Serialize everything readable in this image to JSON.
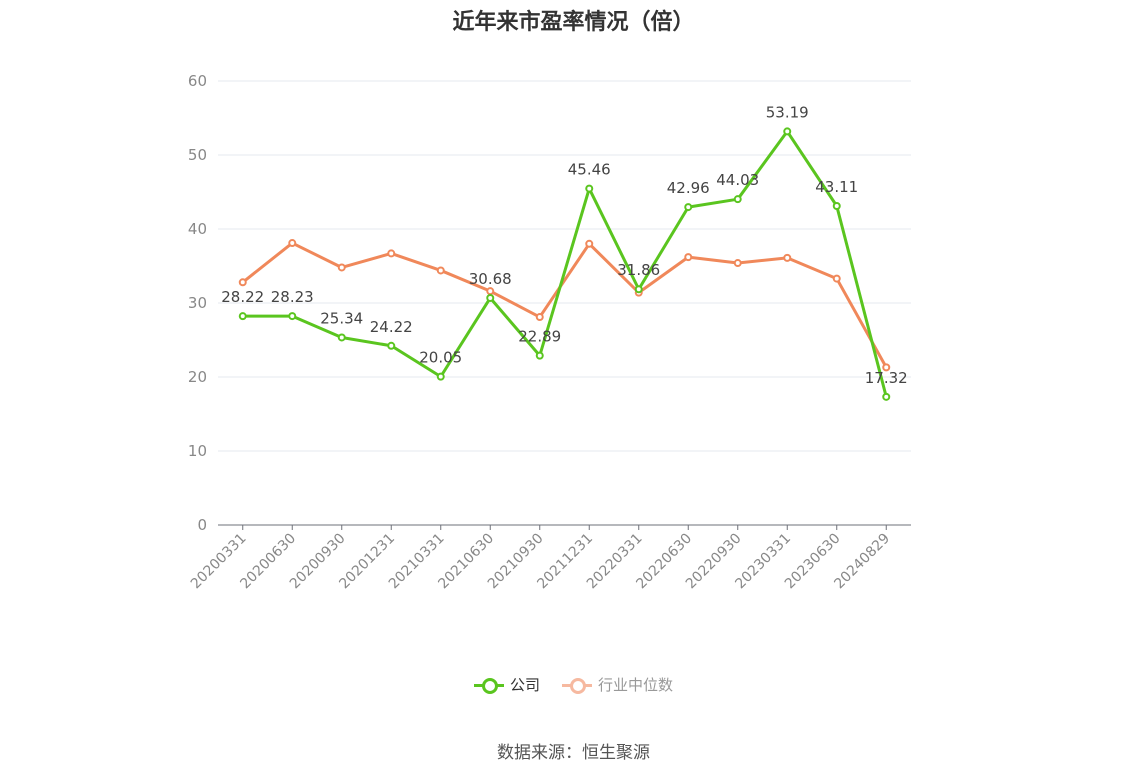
{
  "chart_data": {
    "type": "line",
    "title": "近年来市盈率情况（倍）",
    "xlabel": "",
    "ylabel": "",
    "ylim": [
      0,
      60
    ],
    "yticks": [
      0,
      10,
      20,
      30,
      40,
      50,
      60
    ],
    "grid": true,
    "legend_position": "bottom",
    "categories": [
      "20200331",
      "20200630",
      "20200930",
      "20201231",
      "20210331",
      "20210630",
      "20210930",
      "20211231",
      "20220331",
      "20220630",
      "20220930",
      "20230331",
      "20230630",
      "20240829"
    ],
    "series": [
      {
        "name": "公司",
        "color": "#5ac51f",
        "values": [
          28.22,
          28.23,
          25.34,
          24.22,
          20.05,
          30.68,
          22.89,
          45.46,
          31.86,
          42.96,
          44.03,
          53.19,
          43.11,
          17.32
        ],
        "labels": [
          "28.22",
          "28.23",
          "25.34",
          "24.22",
          "20.05",
          "30.68",
          "22.89",
          "45.46",
          "31.86",
          "42.96",
          "44.03",
          "53.19",
          "43.11",
          "17.32"
        ]
      },
      {
        "name": "行业中位数",
        "color": "#f0885a",
        "values": [
          32.8,
          38.1,
          34.8,
          36.7,
          34.4,
          31.6,
          28.1,
          38.0,
          31.4,
          36.2,
          35.4,
          36.1,
          33.3,
          21.3
        ]
      }
    ]
  },
  "legend": {
    "company": "公司",
    "industry": "行业中位数"
  },
  "source": "数据来源：恒生聚源"
}
